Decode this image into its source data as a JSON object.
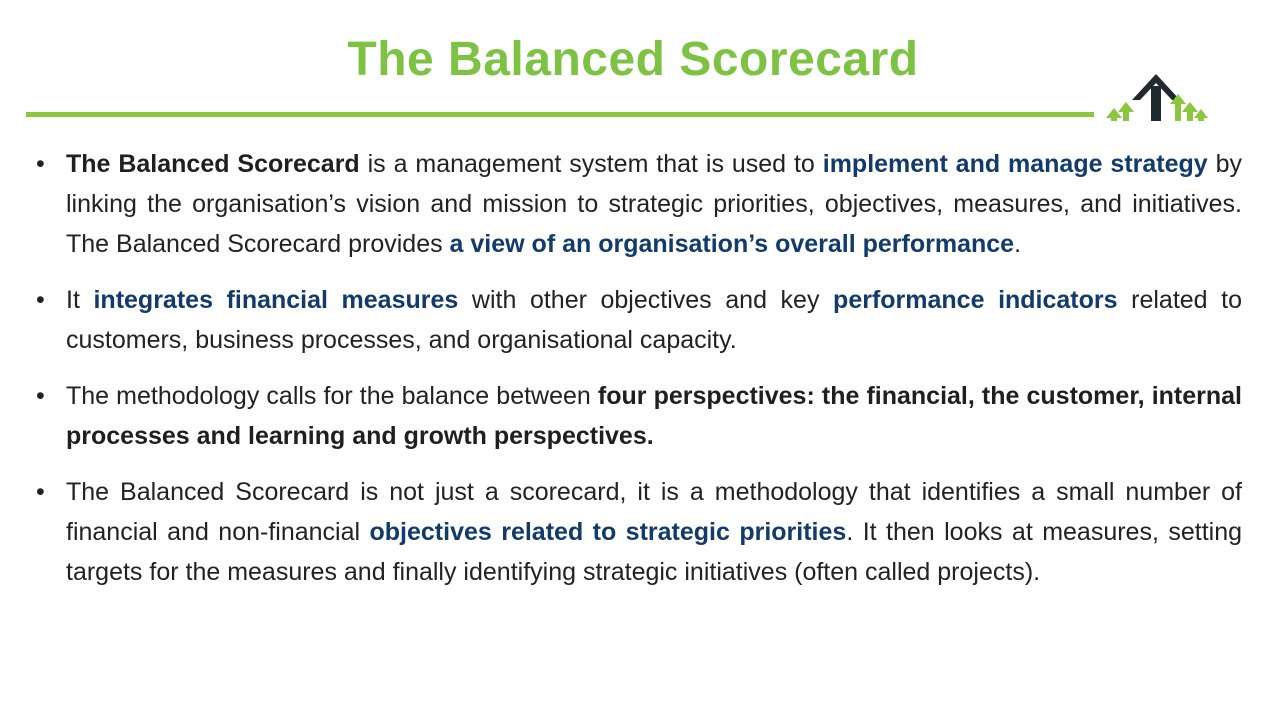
{
  "slide": {
    "title": "The Balanced Scorecard",
    "colors": {
      "title_green": "#7dc242",
      "rule_green": "#8cc63f",
      "emphasis_blue": "#123a6b",
      "logo_dark": "#1f2a2e"
    },
    "logo_icon": "growth-arrows-logo-icon",
    "bullets": [
      [
        {
          "t": "The Balanced Scorecard",
          "s": "dark"
        },
        {
          "t": " is a management system that is used to ",
          "s": ""
        },
        {
          "t": "implement and manage strategy",
          "s": "blue"
        },
        {
          "t": " by linking the organisation’s vision and mission to strategic priorities, objectives, measures, and initiatives. The Balanced Scorecard provides ",
          "s": ""
        },
        {
          "t": "a view of an organisation’s overall performance",
          "s": "blue"
        },
        {
          "t": ".",
          "s": ""
        }
      ],
      [
        {
          "t": "It ",
          "s": ""
        },
        {
          "t": "integrates financial measures",
          "s": "blue"
        },
        {
          "t": " with other objectives and key ",
          "s": ""
        },
        {
          "t": "performance indicators",
          "s": "blue"
        },
        {
          "t": " related to customers, business processes, and organisational capacity.",
          "s": ""
        }
      ],
      [
        {
          "t": "The methodology calls for the balance between ",
          "s": ""
        },
        {
          "t": "four perspectives: the financial, the customer, internal processes and learning and growth perspectives.",
          "s": "dark"
        }
      ],
      [
        {
          "t": " The Balanced Scorecard is not just a scorecard, it is a methodology that identifies a small number of financial and non-financial ",
          "s": ""
        },
        {
          "t": "objectives related to strategic priorities",
          "s": "blue"
        },
        {
          "t": ". It then looks at measures, setting targets for the measures and finally identifying strategic initiatives (often called projects).",
          "s": ""
        }
      ]
    ]
  }
}
